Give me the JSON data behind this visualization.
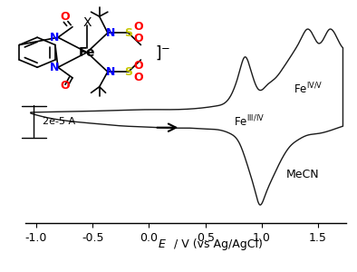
{
  "xlim": [
    -1.1,
    1.75
  ],
  "ylim_data": [
    -1.0,
    1.0
  ],
  "xlabel": "E / V (vs Ag/AgCl)",
  "xlabel_italic": "E",
  "xlabel_rest": " / V (vs Ag/AgCl)",
  "xticks": [
    -1.0,
    -0.5,
    0.0,
    0.5,
    1.0,
    1.5
  ],
  "xtick_labels": [
    "-1.0",
    "-0.5",
    "0.0",
    "0.5",
    "1.0",
    "1.5"
  ],
  "background_color": "#ffffff",
  "line_color": "#1a1a1a",
  "scalebar_label": "2e-5 A",
  "label_feIIIIV": "Fe",
  "label_feIIIIV_super": "III/IV",
  "label_feIVV": "Fe",
  "label_feIVV_super": "IV/V",
  "label_MeCN": "MeCN"
}
